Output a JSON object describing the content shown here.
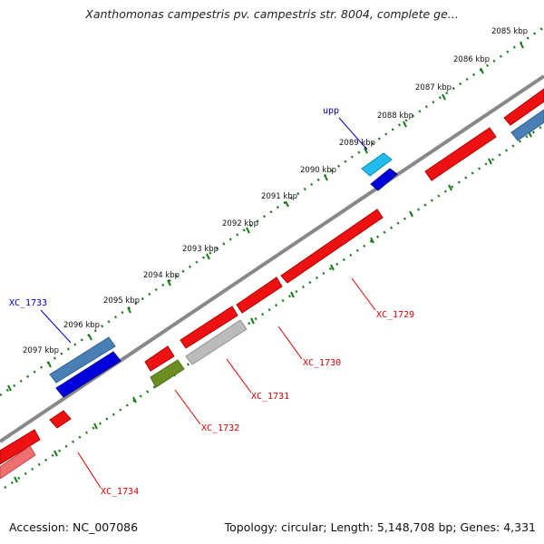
{
  "title": "Xanthomonas campestris pv. campestris str. 8004, complete ge...",
  "footer": {
    "accession": "Accession: NC_007086",
    "topology": "Topology: circular; Length: 5,148,708 bp; Genes: 4,331"
  },
  "ticks": [
    {
      "label": "2085 kbp"
    },
    {
      "label": "2086 kbp"
    },
    {
      "label": "2087 kbp"
    },
    {
      "label": "2088 kbp"
    },
    {
      "label": "2089 kbp"
    },
    {
      "label": "2090 kbp"
    },
    {
      "label": "2091 kbp"
    },
    {
      "label": "2092 kbp"
    },
    {
      "label": "2093 kbp"
    },
    {
      "label": "2094 kbp"
    },
    {
      "label": "2095 kbp"
    },
    {
      "label": "2096 kbp"
    },
    {
      "label": "2097 kbp"
    }
  ],
  "gene_labels": [
    {
      "text": "upp",
      "color": "#0000cc"
    },
    {
      "text": "XC_1733",
      "color": "#0000cc"
    },
    {
      "text": "XC_1729",
      "color": "#dd0000"
    },
    {
      "text": "XC_1730",
      "color": "#dd0000"
    },
    {
      "text": "XC_1731",
      "color": "#dd0000"
    },
    {
      "text": "XC_1732",
      "color": "#dd0000"
    },
    {
      "text": "XC_1734",
      "color": "#dd0000"
    }
  ],
  "colors": {
    "backbone": "#888888",
    "tick_track": "#1a7a1a",
    "forward_red": "#ee1111",
    "light_red": "#f07070",
    "steel_blue": "#4a7fb5",
    "blue": "#0000dd",
    "cyan": "#22bbee",
    "grey": "#bbbbbb",
    "olive": "#6b8e23"
  }
}
